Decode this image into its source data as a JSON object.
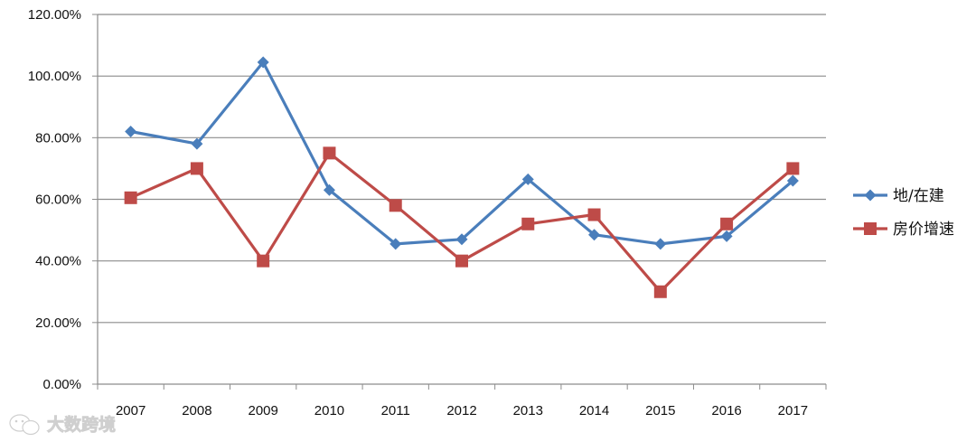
{
  "chart_data": {
    "type": "line",
    "categories": [
      "2007",
      "2008",
      "2009",
      "2010",
      "2011",
      "2012",
      "2013",
      "2014",
      "2015",
      "2016",
      "2017"
    ],
    "ylim": [
      0,
      1.2
    ],
    "y_ticks": [
      "0.00%",
      "20.00%",
      "40.00%",
      "60.00%",
      "80.00%",
      "100.00%",
      "120.00%"
    ],
    "grid": true,
    "legend_position": "right",
    "series": [
      {
        "name": "地/在建",
        "color": "#4a7ebb",
        "marker": "diamond",
        "values": [
          0.82,
          0.78,
          1.045,
          0.63,
          0.455,
          0.47,
          0.665,
          0.485,
          0.455,
          0.48,
          0.66
        ]
      },
      {
        "name": "房价增速",
        "color": "#be4b48",
        "marker": "square",
        "values": [
          0.605,
          0.7,
          0.4,
          0.75,
          0.58,
          0.4,
          0.52,
          0.55,
          0.3,
          0.52,
          0.7
        ]
      }
    ]
  },
  "watermark": {
    "text": "大数跨境",
    "icon": "wechat-logo-icon"
  }
}
